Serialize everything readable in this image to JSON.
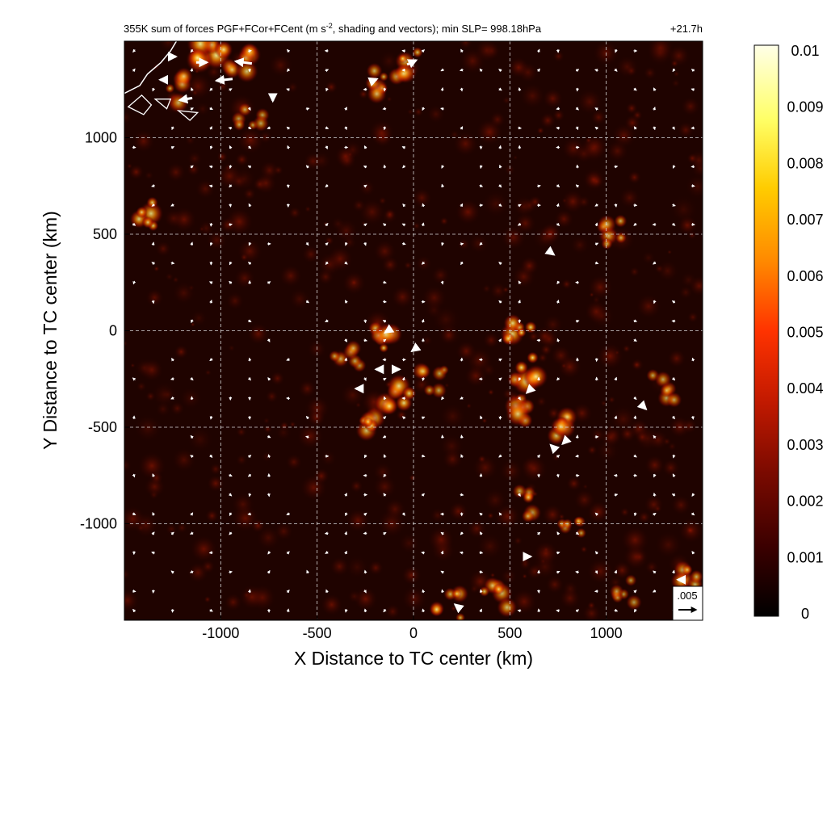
{
  "chart_data": {
    "type": "heatmap",
    "title": "355K sum of forces PGF+FCor+FCent (m s",
    "title_unit_exponent": "-2",
    "title_rest": ", shading and vectors); min SLP= 998.18hPa",
    "time_label": "+21.7h",
    "xlabel": "X Distance to TC center (km)",
    "ylabel": "Y Distance to TC center (km)",
    "xlim": [
      -1500,
      1500
    ],
    "ylim": [
      -1500,
      1500
    ],
    "x_ticks": [
      -1000,
      -500,
      0,
      500,
      1000
    ],
    "x_tick_labels": [
      "-1000",
      "-500",
      "0",
      "500",
      "1000"
    ],
    "y_ticks": [
      1000,
      500,
      0,
      -500,
      -1000
    ],
    "y_tick_labels": [
      "1000",
      "500",
      "0",
      "-500",
      "-1000"
    ],
    "grid": true,
    "colorbar": {
      "min": 0,
      "max": 0.01,
      "ticks": [
        0.01,
        0.009,
        0.008,
        0.007,
        0.006,
        0.005,
        0.004,
        0.003,
        0.002,
        0.001,
        0
      ],
      "tick_labels": [
        "0.01",
        "0.009",
        "0.008",
        "0.007",
        "0.006",
        "0.005",
        "0.004",
        "0.003",
        "0.002",
        "0.001",
        "0"
      ],
      "colors": [
        "#000000",
        "#3a0000",
        "#7a0a00",
        "#c41a00",
        "#ff3300",
        "#ff8800",
        "#ffcc00",
        "#ffff66",
        "#ffffe8"
      ]
    },
    "reference_vector": {
      "label": ".005",
      "magnitude": 0.005
    },
    "hotspots": [
      {
        "x": -1050,
        "y": 1420,
        "v": 0.009
      },
      {
        "x": -900,
        "y": 1380,
        "v": 0.006
      },
      {
        "x": -1250,
        "y": 1250,
        "v": 0.005
      },
      {
        "x": -1400,
        "y": 600,
        "v": 0.007
      },
      {
        "x": -850,
        "y": 1100,
        "v": 0.004
      },
      {
        "x": -30,
        "y": 1380,
        "v": 0.006
      },
      {
        "x": -200,
        "y": 1280,
        "v": 0.005
      },
      {
        "x": -150,
        "y": -50,
        "v": 0.007
      },
      {
        "x": -80,
        "y": -330,
        "v": 0.008
      },
      {
        "x": -250,
        "y": -450,
        "v": 0.006
      },
      {
        "x": -350,
        "y": -120,
        "v": 0.004
      },
      {
        "x": 100,
        "y": -250,
        "v": 0.004
      },
      {
        "x": 560,
        "y": 20,
        "v": 0.008
      },
      {
        "x": 580,
        "y": -200,
        "v": 0.009
      },
      {
        "x": 560,
        "y": -420,
        "v": 0.007
      },
      {
        "x": 740,
        "y": -480,
        "v": 0.006
      },
      {
        "x": 820,
        "y": -1050,
        "v": 0.004
      },
      {
        "x": 600,
        "y": -900,
        "v": 0.004
      },
      {
        "x": 420,
        "y": -1380,
        "v": 0.006
      },
      {
        "x": 180,
        "y": -1420,
        "v": 0.005
      },
      {
        "x": 1040,
        "y": 500,
        "v": 0.005
      },
      {
        "x": 1300,
        "y": -300,
        "v": 0.004
      },
      {
        "x": 1450,
        "y": -1250,
        "v": 0.005
      },
      {
        "x": 1100,
        "y": -1350,
        "v": 0.003
      }
    ],
    "vectors": [
      {
        "x": -1100,
        "y": 1390,
        "u": 0.003,
        "v": 0.0
      },
      {
        "x": -880,
        "y": 1390,
        "u": -0.0045,
        "v": 0.0006
      },
      {
        "x": -980,
        "y": 1300,
        "u": -0.0045,
        "v": -0.0005
      },
      {
        "x": -1300,
        "y": 1300,
        "u": -0.0015,
        "v": 0.0
      },
      {
        "x": -1180,
        "y": 1200,
        "u": -0.0035,
        "v": -0.0006
      },
      {
        "x": -730,
        "y": 1200,
        "u": 0.0,
        "v": -0.001
      },
      {
        "x": -10,
        "y": 1390,
        "u": 0.0025,
        "v": 0.0012
      },
      {
        "x": -200,
        "y": 1300,
        "u": 0.001,
        "v": 0.0004
      },
      {
        "x": -130,
        "y": 2,
        "u": -0.0018,
        "v": -0.0012
      },
      {
        "x": -180,
        "y": -200,
        "u": -0.0015,
        "v": 0.0
      },
      {
        "x": -90,
        "y": -200,
        "u": 0.0018,
        "v": 0.0
      },
      {
        "x": -280,
        "y": -300,
        "u": -0.002,
        "v": 0.0
      },
      {
        "x": 0,
        "y": -100,
        "u": -0.0008,
        "v": -0.0006
      },
      {
        "x": 600,
        "y": -310,
        "u": -0.0012,
        "v": -0.0012
      },
      {
        "x": 720,
        "y": -600,
        "u": -0.0008,
        "v": 0.0008
      },
      {
        "x": 780,
        "y": -580,
        "u": -0.0006,
        "v": -0.0006
      },
      {
        "x": 720,
        "y": 400,
        "u": 0.0008,
        "v": -0.0006
      },
      {
        "x": 230,
        "y": -1430,
        "u": -0.0015,
        "v": 0.0012
      },
      {
        "x": 600,
        "y": -1170,
        "u": 0.0008,
        "v": 0.0
      },
      {
        "x": 1380,
        "y": -1290,
        "u": -0.0008,
        "v": 0.0
      },
      {
        "x": 1200,
        "y": -400,
        "u": 0.0006,
        "v": -0.0006
      },
      {
        "x": -1250,
        "y": 1420,
        "u": 0.0018,
        "v": 0.0
      }
    ],
    "coastline": [
      [
        -1500,
        1230
      ],
      [
        -1420,
        1270
      ],
      [
        -1380,
        1330
      ],
      [
        -1310,
        1390
      ],
      [
        -1260,
        1450
      ],
      [
        -1230,
        1500
      ]
    ],
    "islands": [
      [
        -1480,
        1160,
        -1400,
        1120,
        -1360,
        1170,
        -1410,
        1220
      ],
      [
        -1340,
        1200,
        -1280,
        1150,
        -1260,
        1200
      ],
      [
        -1220,
        1140,
        -1160,
        1090,
        -1120,
        1130
      ]
    ]
  }
}
